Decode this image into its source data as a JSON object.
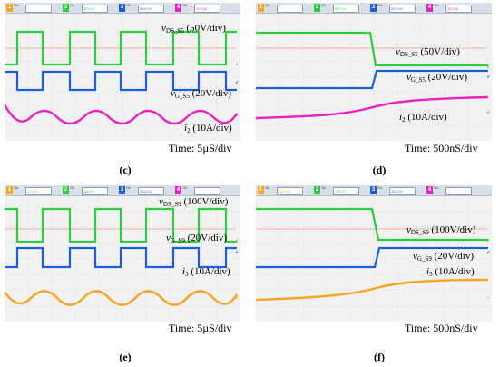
{
  "colors": {
    "ch1": "#f5a623",
    "ch2": "#2ecc40",
    "ch3": "#1f5fd6",
    "ch4": "#e824c0",
    "grid": "#bcbcbc",
    "ref": "#e07060"
  },
  "panels": [
    {
      "caption": "(c)",
      "time": "Time: 5µS/div",
      "channels": [
        {
          "num": "1",
          "on": "On",
          "scale": ""
        },
        {
          "num": "2",
          "on": "On",
          "scale": "50.0 V/"
        },
        {
          "num": "3",
          "on": "On",
          "scale": "20.0 V/"
        },
        {
          "num": "4",
          "on": "On",
          "scale": "10.0 A/"
        }
      ],
      "labels": {
        "vds": {
          "main": "v",
          "sub": "DS_S5",
          "rest": " (50V/div)"
        },
        "vg": {
          "main": "v",
          "sub": "G_S5",
          "rest": " (20V/div)"
        },
        "i": {
          "main": "i",
          "sub": "2",
          "rest": " (10A/div)"
        }
      }
    },
    {
      "caption": "(d)",
      "time": "Time: 500nS/div",
      "channels": [
        {
          "num": "1",
          "on": "On",
          "scale": ""
        },
        {
          "num": "2",
          "on": "On",
          "scale": "50.0 V/"
        },
        {
          "num": "3",
          "on": "On",
          "scale": "20.0 V/"
        },
        {
          "num": "4",
          "on": "On",
          "scale": "10.0 A/"
        }
      ],
      "labels": {
        "vds": {
          "main": "v",
          "sub": "DS_S5",
          "rest": " (50V/div)"
        },
        "vg": {
          "main": "v",
          "sub": "G_S5",
          "rest": " (20V/div)"
        },
        "i": {
          "main": "i",
          "sub": "2",
          "rest": " (10A/div)"
        }
      }
    },
    {
      "caption": "(e)",
      "time": "Time: 5µS/div",
      "channels": [
        {
          "num": "1",
          "on": "On",
          "scale": "10.0 A/"
        },
        {
          "num": "2",
          "on": "On",
          "scale": "100 V/"
        },
        {
          "num": "3",
          "on": "On",
          "scale": "20.0 V/"
        },
        {
          "num": "4",
          "on": "On",
          "scale": ""
        }
      ],
      "labels": {
        "vds": {
          "main": "v",
          "sub": "DS_S9",
          "rest": " (100V/div)"
        },
        "vg": {
          "main": "v",
          "sub": "G_S9",
          "rest": " (20V/div)"
        },
        "i": {
          "main": "i",
          "sub": "3",
          "rest": " (10A/div)"
        }
      }
    },
    {
      "caption": "(f)",
      "time": "Time: 500nS/div",
      "channels": [
        {
          "num": "1",
          "on": "On",
          "scale": "10.0 A/"
        },
        {
          "num": "2",
          "on": "On",
          "scale": "100 V/"
        },
        {
          "num": "3",
          "on": "On",
          "scale": "20.0 V/"
        },
        {
          "num": "4",
          "on": "On",
          "scale": ""
        }
      ],
      "labels": {
        "vds": {
          "main": "v",
          "sub": "DS_S9",
          "rest": " (100V/div)"
        },
        "vg": {
          "main": "v",
          "sub": "G_S9",
          "rest": " (20V/div)"
        },
        "i": {
          "main": "i",
          "sub": "3",
          "rest": " (10A/div)"
        }
      }
    }
  ]
}
